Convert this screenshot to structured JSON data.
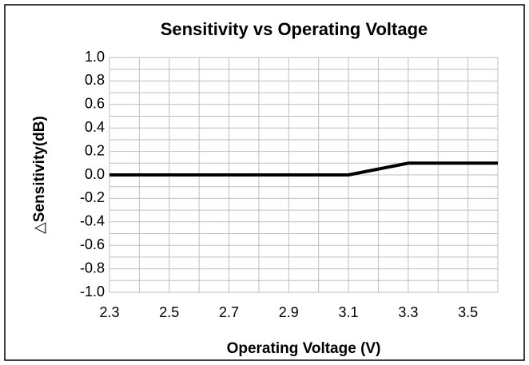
{
  "chart_data": {
    "type": "line",
    "title": "Sensitivity vs Operating Voltage",
    "xlabel": "Operating Voltage (V)",
    "ylabel": "△Sensitivity(dB)",
    "x": [
      2.3,
      3.1,
      3.3,
      3.6
    ],
    "series": [
      {
        "name": "Sensitivity",
        "color": "#000000",
        "values": [
          0,
          0,
          0.1,
          0.1
        ]
      }
    ],
    "xlim": [
      2.3,
      3.6
    ],
    "xticks": [
      2.3,
      2.5,
      2.7,
      2.9,
      3.1,
      3.3,
      3.5
    ],
    "xminor": [
      2.4,
      2.6,
      2.8,
      3.0,
      3.2,
      3.4,
      3.6
    ],
    "ylim": [
      -1,
      1
    ],
    "yticks": [
      {
        "value": 1,
        "label": "1.0"
      },
      0.8,
      0.6,
      0.4,
      0.2,
      {
        "value": 0,
        "label": "0.0"
      },
      -0.2,
      -0.4,
      -0.6,
      -0.8,
      {
        "value": -1,
        "label": "-1.0"
      }
    ],
    "yminor": [
      0.9,
      0.7,
      0.5,
      0.3,
      0.1,
      -0.1,
      -0.3,
      -0.5,
      -0.7,
      -0.9
    ],
    "grid": true
  }
}
